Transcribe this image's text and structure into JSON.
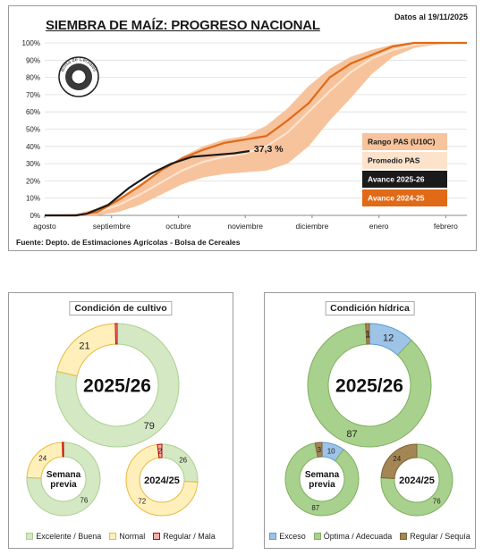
{
  "header": {
    "title": "SIEMBRA DE MAÍZ: PROGRESO NACIONAL",
    "date": "Datos al 19/11/2025",
    "source": "Fuente: Depto. de Estimaciones Agrícolas - Bolsa de Cereales",
    "logo_text": "Bolsa de Cereales"
  },
  "colors": {
    "range_band": "#f7c39c",
    "average": "#fde3cc",
    "current": "#1a1a1a",
    "previous": "#e06a17",
    "excellent": "#a9d18e",
    "excellent_light": "#d4e8c4",
    "normal": "#ffd966",
    "normal_light": "#fff0bb",
    "regular": "#c00000",
    "regular_light": "#f4b0a8",
    "exceso": "#9dc3e6",
    "exceso_dark": "#5b9bd5",
    "optima": "#a9d18e",
    "sequia": "#a48655"
  },
  "chart_data": [
    {
      "type": "line",
      "title": "SIEMBRA DE MAÍZ: PROGRESO NACIONAL",
      "x_axis_labels": [
        "agosto",
        "septiembre",
        "octubre",
        "noviembre",
        "diciembre",
        "enero",
        "febrero"
      ],
      "x_range_days": [
        0,
        200
      ],
      "ylim": [
        0,
        100
      ],
      "y_ticks": [
        "0%",
        "10%",
        "20%",
        "30%",
        "40%",
        "50%",
        "60%",
        "70%",
        "80%",
        "90%",
        "100%"
      ],
      "annotation": "37,3 %",
      "legend": [
        "Rango PAS (U10C)",
        "Promedio PAS",
        "Avance 2025-26",
        "Avance 2024-25"
      ],
      "series": [
        {
          "name": "Rango PAS (U10C)",
          "kind": "band",
          "x": [
            0,
            15,
            25,
            35,
            45,
            55,
            65,
            75,
            85,
            95,
            105,
            115,
            125,
            135,
            145,
            155,
            165,
            175,
            185,
            200
          ],
          "low": [
            0,
            0,
            0,
            2,
            6,
            12,
            18,
            22,
            24,
            25,
            26,
            30,
            40,
            55,
            68,
            82,
            92,
            97,
            99,
            100
          ],
          "high": [
            0,
            1,
            4,
            10,
            18,
            26,
            34,
            40,
            44,
            46,
            52,
            62,
            75,
            85,
            92,
            96,
            99,
            100,
            100,
            100
          ]
        },
        {
          "name": "Promedio PAS",
          "x": [
            0,
            15,
            25,
            35,
            45,
            55,
            65,
            75,
            85,
            95,
            105,
            115,
            125,
            135,
            145,
            155,
            165,
            175,
            185,
            200
          ],
          "y": [
            0,
            0,
            2,
            6,
            12,
            19,
            26,
            31,
            34,
            36,
            40,
            48,
            60,
            72,
            83,
            91,
            96,
            99,
            100,
            100
          ]
        },
        {
          "name": "Avance 2025-26",
          "x": [
            0,
            15,
            20,
            30,
            40,
            50,
            60,
            70,
            80,
            90,
            97
          ],
          "y": [
            0,
            0,
            1,
            6,
            16,
            24,
            30,
            34,
            35,
            36,
            37.3
          ]
        },
        {
          "name": "Avance 2024-25",
          "x": [
            0,
            15,
            25,
            35,
            45,
            55,
            65,
            75,
            85,
            95,
            105,
            115,
            125,
            135,
            145,
            155,
            165,
            175,
            185,
            200
          ],
          "y": [
            0,
            0,
            2,
            9,
            17,
            26,
            33,
            38,
            42,
            44,
            46,
            55,
            65,
            80,
            88,
            93,
            98,
            100,
            100,
            100
          ]
        }
      ]
    },
    {
      "type": "pie",
      "title": "Condición de cultivo",
      "legend": [
        "Excelente / Buena",
        "Normal",
        "Regular / Mala"
      ],
      "donuts": [
        {
          "label": "2025/26",
          "values": [
            79,
            21,
            0.5
          ],
          "labels": [
            "79",
            "21",
            ""
          ]
        },
        {
          "label": "Semana previa",
          "values": [
            76,
            24,
            0.5
          ],
          "labels": [
            "76",
            "24",
            ""
          ]
        },
        {
          "label": "2024/25",
          "values": [
            26,
            72,
            2
          ],
          "labels": [
            "26",
            "72",
            "2"
          ]
        }
      ]
    },
    {
      "type": "pie",
      "title": "Condición hídrica",
      "legend": [
        "Exceso",
        "Óptima / Adecuada",
        "Regular / Sequía"
      ],
      "donuts": [
        {
          "label": "2025/26",
          "values": [
            12,
            87,
            1
          ],
          "labels": [
            "12",
            "87",
            "1"
          ]
        },
        {
          "label": "Semana previa",
          "values": [
            10,
            87,
            3
          ],
          "labels": [
            "10",
            "87",
            "3"
          ]
        },
        {
          "label": "2024/25",
          "values": [
            0,
            76,
            24
          ],
          "labels": [
            "0",
            "76",
            "24"
          ]
        }
      ]
    }
  ]
}
